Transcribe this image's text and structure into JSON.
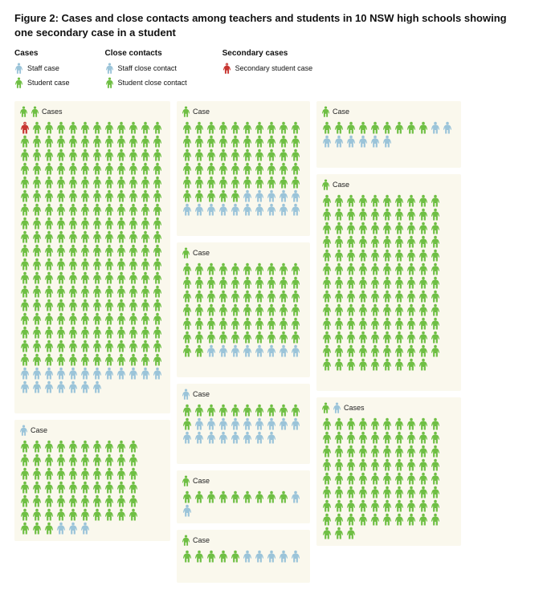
{
  "title": "Figure 2: Cases and close contacts among teachers and students in 10 NSW high schools showing one secondary case in a student",
  "colors": {
    "student_green": "#6fbf44",
    "staff_blue": "#9bc4d9",
    "secondary_red": "#c73530",
    "panel_bg": "#faf8ed",
    "text": "#111111"
  },
  "icon_size": {
    "w": 12,
    "h": 16
  },
  "legend": {
    "groups": [
      {
        "heading": "Cases",
        "items": [
          {
            "type": "staff",
            "label": "Staff case"
          },
          {
            "type": "student",
            "label": "Student case"
          }
        ]
      },
      {
        "heading": "Close contacts",
        "items": [
          {
            "type": "staff",
            "label": "Staff close contact"
          },
          {
            "type": "student",
            "label": "Student close contact"
          }
        ]
      },
      {
        "heading": "Secondary cases",
        "items": [
          {
            "type": "secondary",
            "label": "Secondary student case"
          }
        ]
      }
    ]
  },
  "layout": {
    "columns": [
      {
        "panel_ids": [
          "p1",
          "p2"
        ]
      },
      {
        "panel_ids": [
          "p3",
          "p4",
          "p5",
          "p6",
          "p7"
        ]
      },
      {
        "panel_ids": [
          "p8",
          "p9",
          "p10"
        ]
      }
    ]
  },
  "panels": {
    "p1": {
      "label": "Cases",
      "head_icons": [
        "student",
        "student"
      ],
      "cols": 13,
      "rows": [
        [
          {
            "t": "secondary"
          },
          {
            "t": "student",
            "n": 12
          }
        ],
        {
          "repeat": 15,
          "of": [
            {
              "t": "student",
              "n": 13
            }
          ]
        },
        [
          {
            "t": "student",
            "n": 8
          },
          {
            "t": "staff",
            "n": 5
          }
        ],
        [
          {
            "t": "staff",
            "n": 13
          }
        ],
        [
          {
            "t": "staff",
            "n": 1
          }
        ]
      ]
    },
    "p2": {
      "label": "Case",
      "head_icons": [
        "staff"
      ],
      "cols": 11,
      "rows": [
        {
          "repeat": 5,
          "of": [
            {
              "t": "student",
              "n": 11
            }
          ]
        },
        [
          {
            "t": "student",
            "n": 8
          },
          {
            "t": "staff",
            "n": 3
          }
        ]
      ]
    },
    "p3": {
      "label": "Case",
      "head_icons": [
        "student"
      ],
      "cols": 11,
      "rows": [
        {
          "repeat": 5,
          "of": [
            {
              "t": "student",
              "n": 11
            }
          ]
        },
        [
          {
            "t": "staff",
            "n": 11
          }
        ],
        [
          {
            "t": "staff",
            "n": 4
          }
        ]
      ]
    },
    "p4": {
      "label": "Case",
      "head_icons": [
        "student"
      ],
      "cols": 11,
      "rows": [
        {
          "repeat": 5,
          "of": [
            {
              "t": "student",
              "n": 11
            }
          ]
        },
        [
          {
            "t": "student",
            "n": 7
          },
          {
            "t": "staff",
            "n": 4
          }
        ],
        [
          {
            "t": "staff",
            "n": 4
          }
        ]
      ]
    },
    "p5": {
      "label": "Case",
      "head_icons": [
        "staff"
      ],
      "cols": 11,
      "rows": [
        [
          {
            "t": "student",
            "n": 11
          }
        ],
        [
          {
            "t": "staff",
            "n": 11
          }
        ],
        [
          {
            "t": "staff",
            "n": 6
          }
        ]
      ]
    },
    "p6": {
      "label": "Case",
      "head_icons": [
        "student"
      ],
      "cols": 11,
      "rows": [
        [
          {
            "t": "student",
            "n": 9
          },
          {
            "t": "staff",
            "n": 2
          }
        ]
      ]
    },
    "p7": {
      "label": "Case",
      "head_icons": [
        "student"
      ],
      "cols": 11,
      "rows": [
        [
          {
            "t": "student",
            "n": 5
          },
          {
            "t": "staff",
            "n": 5
          }
        ]
      ]
    },
    "p8": {
      "label": "Case",
      "head_icons": [
        "student"
      ],
      "cols": 12,
      "rows": [
        [
          {
            "t": "student",
            "n": 9
          },
          {
            "t": "staff",
            "n": 3
          }
        ],
        [
          {
            "t": "staff",
            "n": 5
          }
        ]
      ]
    },
    "p9": {
      "label": "Case",
      "head_icons": [
        "student"
      ],
      "cols": 11,
      "rows": [
        {
          "repeat": 11,
          "of": [
            {
              "t": "student",
              "n": 11
            }
          ]
        },
        [
          {
            "t": "student",
            "n": 8
          }
        ]
      ]
    },
    "p10": {
      "label": "Cases",
      "head_icons": [
        "student",
        "staff"
      ],
      "cols": 11,
      "rows": [
        {
          "repeat": 7,
          "of": [
            {
              "t": "student",
              "n": 11
            }
          ]
        },
        [
          {
            "t": "student",
            "n": 6
          }
        ]
      ]
    }
  }
}
